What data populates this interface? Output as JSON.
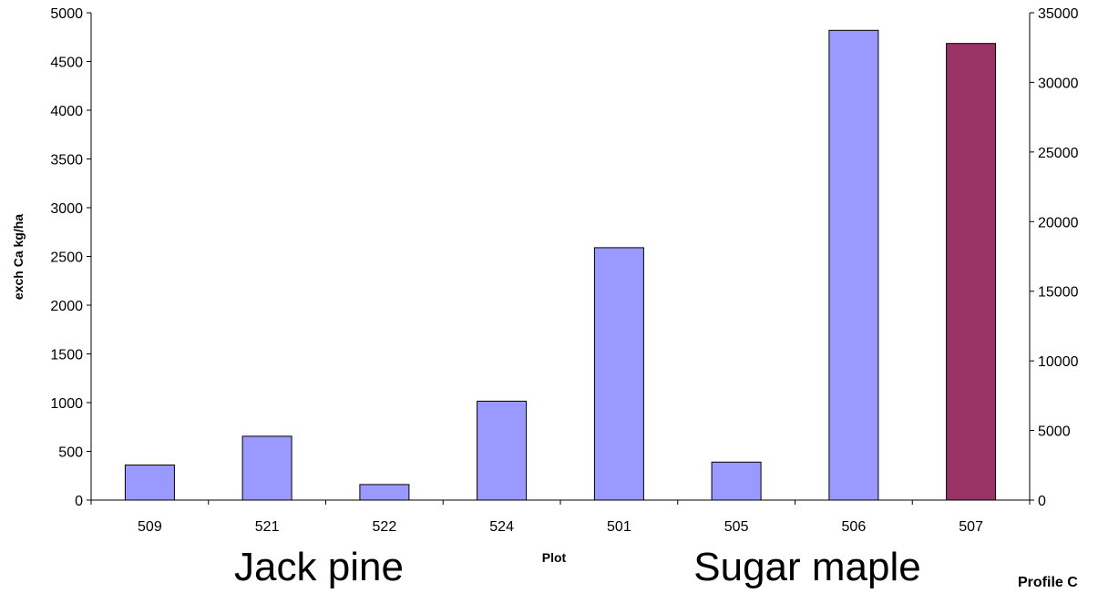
{
  "chart_data": {
    "type": "bar",
    "categories": [
      "509",
      "521",
      "522",
      "524",
      "501",
      "505",
      "506",
      "507"
    ],
    "values": [
      360,
      655,
      160,
      1015,
      2590,
      390,
      4820,
      4685
    ],
    "colors": [
      "#9999ff",
      "#9999ff",
      "#9999ff",
      "#9999ff",
      "#9999ff",
      "#9999ff",
      "#9999ff",
      "#993366"
    ],
    "ylim": [
      0,
      5000
    ],
    "yticks": [
      "0",
      "500",
      "1000",
      "1500",
      "2000",
      "2500",
      "3000",
      "3500",
      "4000",
      "4500",
      "5000"
    ],
    "y2lim": [
      0,
      35000
    ],
    "y2ticks": [
      "0",
      "5000",
      "10000",
      "15000",
      "20000",
      "25000",
      "30000",
      "35000"
    ],
    "xlabel": "Plot",
    "ylabel": "exch Ca kg/ha",
    "group_labels": [
      "Jack pine",
      "Sugar maple"
    ],
    "corner_label": "Profile C",
    "grid": false
  }
}
